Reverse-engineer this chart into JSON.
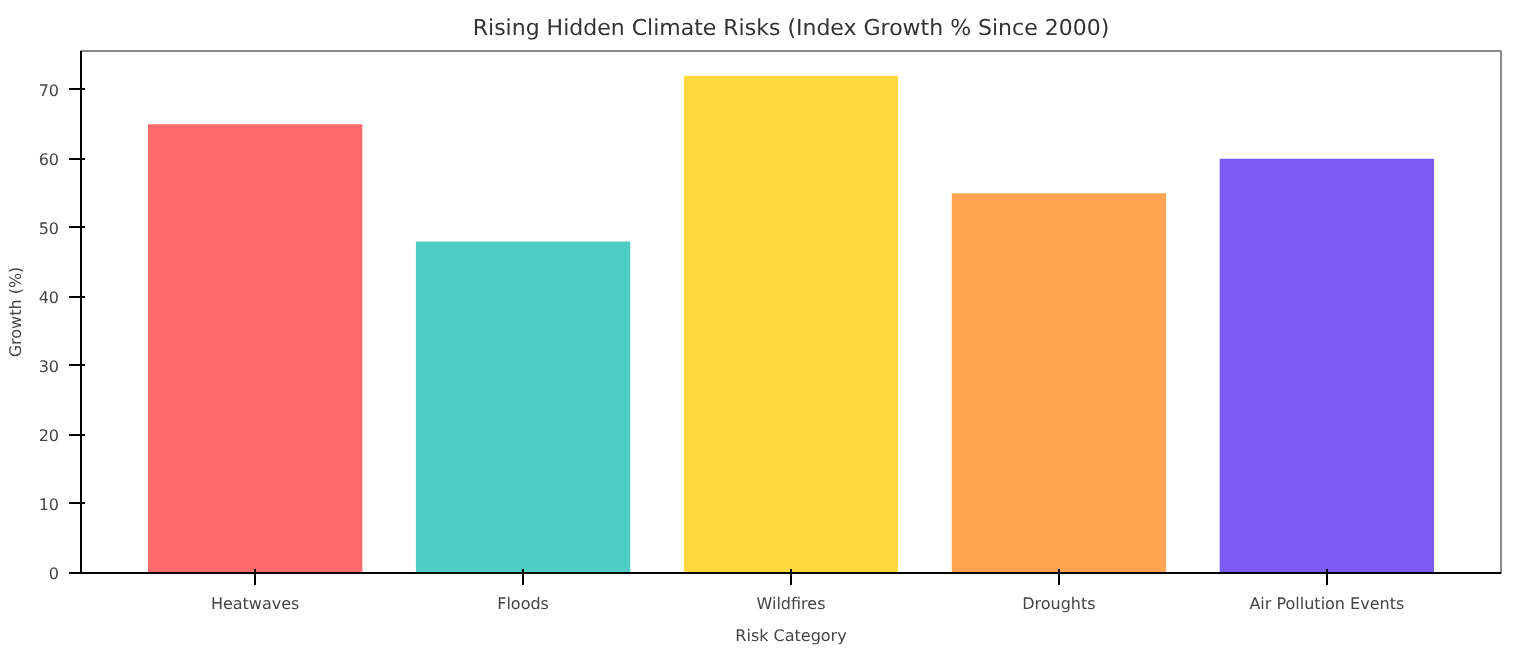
{
  "chart_data": {
    "type": "bar",
    "title": "Rising Hidden Climate Risks (Index Growth % Since 2000)",
    "xlabel": "Risk Category",
    "ylabel": "Growth (%)",
    "categories": [
      "Heatwaves",
      "Floods",
      "Wildfires",
      "Droughts",
      "Air Pollution Events"
    ],
    "values": [
      65,
      48,
      72,
      55,
      60
    ],
    "colors": [
      "#ff6b6b",
      "#4ecdc4",
      "#ffd93d",
      "#ffa552",
      "#7b5cf5"
    ],
    "ylim": [
      0,
      75.6
    ],
    "yticks": [
      0,
      10,
      20,
      30,
      40,
      50,
      60,
      70
    ],
    "grid": false
  }
}
